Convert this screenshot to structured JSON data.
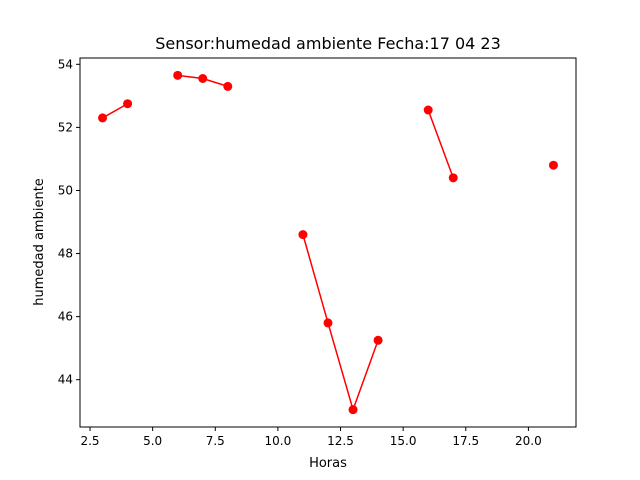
{
  "chart_data": {
    "type": "line",
    "title": "Sensor:humedad ambiente Fecha:17 04 23",
    "xlabel": "Horas",
    "ylabel": "humedad ambiente",
    "xlim": [
      2.1,
      21.9
    ],
    "ylim": [
      42.5,
      54.2
    ],
    "xticks": [
      2.5,
      5.0,
      7.5,
      10.0,
      12.5,
      15.0,
      17.5,
      20.0
    ],
    "xtick_labels": [
      "2.5",
      "5.0",
      "7.5",
      "10.0",
      "12.5",
      "15.0",
      "17.5",
      "20.0"
    ],
    "yticks": [
      44,
      46,
      48,
      50,
      52,
      54
    ],
    "ytick_labels": [
      "44",
      "46",
      "48",
      "50",
      "52",
      "54"
    ],
    "grid": false,
    "color": "#ff0000",
    "segments": [
      [
        {
          "x": 3,
          "y": 52.3
        },
        {
          "x": 4,
          "y": 52.75
        }
      ],
      [
        {
          "x": 6,
          "y": 53.65
        },
        {
          "x": 7,
          "y": 53.55
        },
        {
          "x": 8,
          "y": 53.3
        }
      ],
      [
        {
          "x": 11,
          "y": 48.6
        },
        {
          "x": 12,
          "y": 45.8
        },
        {
          "x": 13,
          "y": 43.05
        },
        {
          "x": 14,
          "y": 45.25
        }
      ],
      [
        {
          "x": 16,
          "y": 52.55
        },
        {
          "x": 17,
          "y": 50.4
        }
      ],
      [
        {
          "x": 21,
          "y": 50.8
        }
      ]
    ]
  }
}
